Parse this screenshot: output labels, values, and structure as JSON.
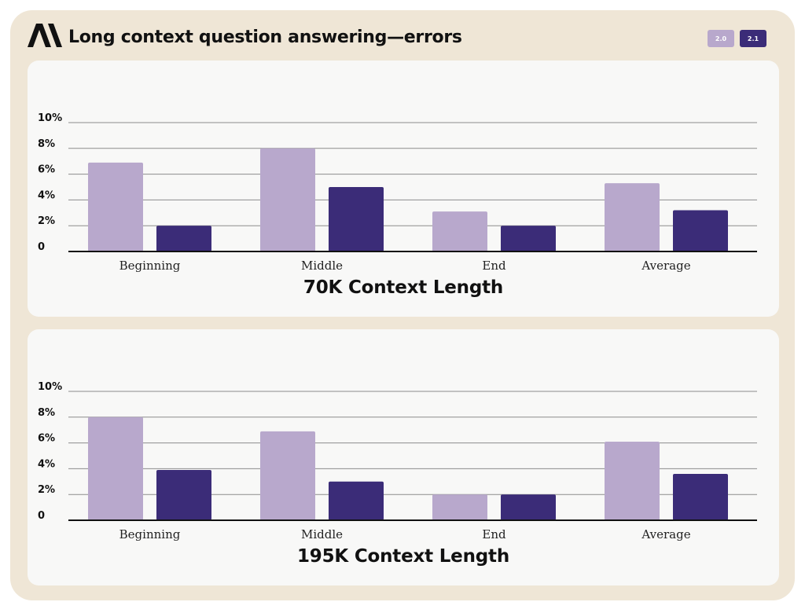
{
  "header": {
    "logo": "anthropic-logo",
    "title": "Long context question answering—errors"
  },
  "colors": {
    "v2_0": "#b8a8cc",
    "v2_1": "#3b2c78",
    "grid": "#8c8c8c",
    "axis": "#111111"
  },
  "legend": [
    {
      "label": "2.0",
      "color": "#b8a8cc"
    },
    {
      "label": "2.1",
      "color": "#3b2c78"
    }
  ],
  "chart_data": [
    {
      "type": "bar",
      "title": "70K Context Length",
      "categories": [
        "Beginning",
        "Middle",
        "End",
        "Average"
      ],
      "series": [
        {
          "name": "2.0",
          "values": [
            6.9,
            8.0,
            3.1,
            5.3
          ]
        },
        {
          "name": "2.1",
          "values": [
            2.0,
            5.0,
            2.0,
            3.2
          ]
        }
      ],
      "yticks": [
        "0",
        "2%",
        "4%",
        "6%",
        "8%",
        "10%"
      ],
      "ylim": [
        0,
        10
      ],
      "xlabel": "",
      "ylabel": "",
      "grid": true,
      "legend_position": "top-right"
    },
    {
      "type": "bar",
      "title": "195K Context Length",
      "categories": [
        "Beginning",
        "Middle",
        "End",
        "Average"
      ],
      "series": [
        {
          "name": "2.0",
          "values": [
            8.0,
            6.9,
            2.0,
            6.1
          ]
        },
        {
          "name": "2.1",
          "values": [
            3.9,
            3.0,
            2.0,
            3.6
          ]
        }
      ],
      "yticks": [
        "0",
        "2%",
        "4%",
        "6%",
        "8%",
        "10%"
      ],
      "ylim": [
        0,
        10
      ],
      "xlabel": "",
      "ylabel": "",
      "grid": true,
      "legend_position": "top-right"
    }
  ]
}
